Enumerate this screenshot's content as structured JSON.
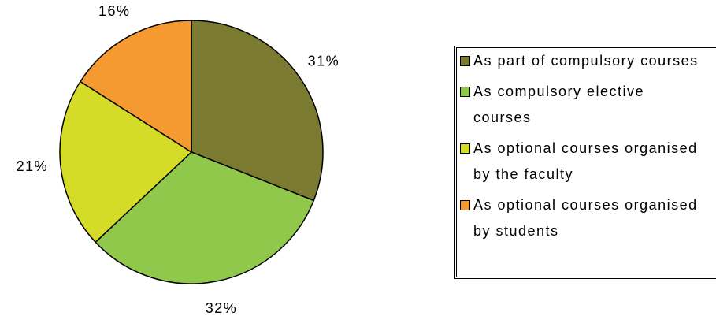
{
  "chart_data": {
    "type": "pie",
    "categories": [
      "As part of compulsory courses",
      "As compulsory elective courses",
      "As optional courses organised by the faculty",
      "As optional courses organised by students"
    ],
    "values": [
      31,
      32,
      21,
      16
    ],
    "value_labels": [
      "31%",
      "32%",
      "21%",
      "16%"
    ],
    "colors": [
      "#7a7a30",
      "#8fc84a",
      "#d4dc28",
      "#f59a30"
    ]
  }
}
